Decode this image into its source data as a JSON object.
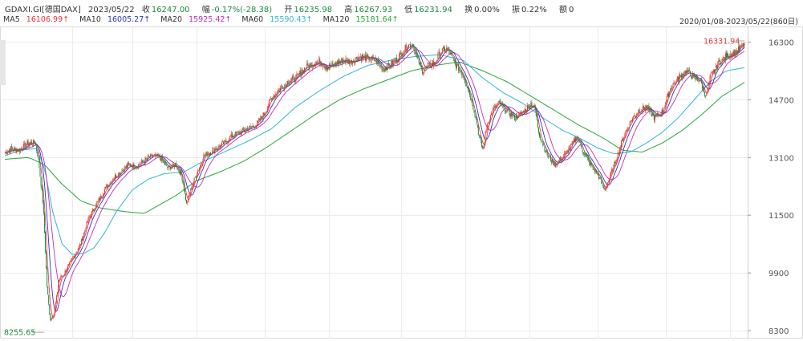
{
  "header": {
    "symbol": "GDAXI.GI[德国DAX]",
    "date": "2023/05/22",
    "close_label": "收",
    "close_value": "16247.00",
    "change_label": "幅",
    "change_value": "-0.17%(-28.38)",
    "open_label": "开",
    "open_value": "16235.98",
    "high_label": "高",
    "high_value": "16267.93",
    "low_label": "低",
    "low_value": "16231.94",
    "turnover_label": "换",
    "turnover_value": "0.00%",
    "amplitude_label": "振",
    "amplitude_value": "0.22%",
    "amount_label": "额",
    "amount_value": "0"
  },
  "ma_legend": [
    {
      "label": "MA5",
      "value": "16106.99↑",
      "color": "#e8373a"
    },
    {
      "label": "MA10",
      "value": "16005.27↑",
      "color": "#2a35c9"
    },
    {
      "label": "MA20",
      "value": "15925.42↑",
      "color": "#c22fb4"
    },
    {
      "label": "MA60",
      "value": "15590.43↑",
      "color": "#2fb7d6"
    },
    {
      "label": "MA120",
      "value": "15181.64↑",
      "color": "#28a83a"
    }
  ],
  "date_range": "2020/01/08-2023/05/22(860日)",
  "chart_data": {
    "type": "line",
    "ylim": [
      8000,
      16700
    ],
    "yticks": [
      16300,
      14700,
      13100,
      11500,
      9900,
      8300
    ],
    "grid": true,
    "colors": {
      "up": "#e8373a",
      "down": "#1b8a3c",
      "ma5": "#e8373a",
      "ma10": "#2a35c9",
      "ma20": "#c22fb4",
      "ma60": "#2fb7d6",
      "ma120": "#28a83a"
    },
    "annotations": {
      "high_label": "16331.94",
      "low_label": "8255.65"
    },
    "close": [
      [
        0,
        13230
      ],
      [
        8,
        13350
      ],
      [
        18,
        13300
      ],
      [
        28,
        13480
      ],
      [
        38,
        13520
      ],
      [
        42,
        13100
      ],
      [
        48,
        11800
      ],
      [
        53,
        9500
      ],
      [
        57,
        8600
      ],
      [
        62,
        8800
      ],
      [
        68,
        9700
      ],
      [
        75,
        9900
      ],
      [
        85,
        10300
      ],
      [
        95,
        10700
      ],
      [
        105,
        11400
      ],
      [
        115,
        11800
      ],
      [
        125,
        12200
      ],
      [
        135,
        12500
      ],
      [
        145,
        12700
      ],
      [
        155,
        12900
      ],
      [
        165,
        12850
      ],
      [
        175,
        13000
      ],
      [
        185,
        13150
      ],
      [
        195,
        13100
      ],
      [
        205,
        12800
      ],
      [
        215,
        12900
      ],
      [
        222,
        12600
      ],
      [
        228,
        11800
      ],
      [
        232,
        12100
      ],
      [
        238,
        12500
      ],
      [
        250,
        13150
      ],
      [
        262,
        13300
      ],
      [
        275,
        13500
      ],
      [
        285,
        13700
      ],
      [
        295,
        13800
      ],
      [
        305,
        13900
      ],
      [
        315,
        14000
      ],
      [
        325,
        14300
      ],
      [
        335,
        14750
      ],
      [
        345,
        15000
      ],
      [
        355,
        15200
      ],
      [
        365,
        15300
      ],
      [
        375,
        15550
      ],
      [
        385,
        15700
      ],
      [
        395,
        15750
      ],
      [
        405,
        15600
      ],
      [
        415,
        15700
      ],
      [
        425,
        15800
      ],
      [
        435,
        15750
      ],
      [
        445,
        15900
      ],
      [
        455,
        15850
      ],
      [
        465,
        15800
      ],
      [
        475,
        15550
      ],
      [
        485,
        15700
      ],
      [
        495,
        15900
      ],
      [
        505,
        16200
      ],
      [
        512,
        16250
      ],
      [
        518,
        15800
      ],
      [
        524,
        15500
      ],
      [
        530,
        15600
      ],
      [
        540,
        15750
      ],
      [
        548,
        16050
      ],
      [
        556,
        16100
      ],
      [
        565,
        15700
      ],
      [
        575,
        15400
      ],
      [
        583,
        14900
      ],
      [
        590,
        14300
      ],
      [
        595,
        13700
      ],
      [
        600,
        13300
      ],
      [
        605,
        14000
      ],
      [
        612,
        14400
      ],
      [
        620,
        14600
      ],
      [
        630,
        14400
      ],
      [
        640,
        14200
      ],
      [
        650,
        14350
      ],
      [
        660,
        14600
      ],
      [
        665,
        14450
      ],
      [
        670,
        13800
      ],
      [
        680,
        13200
      ],
      [
        690,
        12900
      ],
      [
        700,
        13100
      ],
      [
        710,
        13400
      ],
      [
        718,
        13700
      ],
      [
        725,
        13300
      ],
      [
        735,
        12900
      ],
      [
        745,
        12600
      ],
      [
        752,
        12200
      ],
      [
        758,
        12500
      ],
      [
        765,
        12900
      ],
      [
        775,
        13600
      ],
      [
        785,
        14100
      ],
      [
        795,
        14400
      ],
      [
        805,
        14500
      ],
      [
        815,
        14200
      ],
      [
        825,
        14350
      ],
      [
        835,
        15000
      ],
      [
        845,
        15300
      ],
      [
        855,
        15500
      ],
      [
        865,
        15300
      ],
      [
        872,
        15250
      ],
      [
        880,
        14800
      ],
      [
        885,
        15300
      ],
      [
        895,
        15700
      ],
      [
        905,
        15900
      ],
      [
        915,
        16000
      ],
      [
        922,
        16100
      ],
      [
        928,
        16247
      ]
    ],
    "ma60": [
      [
        0,
        13150
      ],
      [
        20,
        13300
      ],
      [
        40,
        13350
      ],
      [
        50,
        12800
      ],
      [
        60,
        11600
      ],
      [
        72,
        10700
      ],
      [
        85,
        10400
      ],
      [
        100,
        10450
      ],
      [
        112,
        10600
      ],
      [
        125,
        11000
      ],
      [
        140,
        11600
      ],
      [
        160,
        12200
      ],
      [
        180,
        12500
      ],
      [
        200,
        12650
      ],
      [
        225,
        12700
      ],
      [
        245,
        12950
      ],
      [
        275,
        13250
      ],
      [
        305,
        13550
      ],
      [
        335,
        13900
      ],
      [
        365,
        14500
      ],
      [
        395,
        14950
      ],
      [
        425,
        15350
      ],
      [
        455,
        15650
      ],
      [
        485,
        15800
      ],
      [
        515,
        15900
      ],
      [
        545,
        15950
      ],
      [
        575,
        15800
      ],
      [
        600,
        15300
      ],
      [
        625,
        14900
      ],
      [
        650,
        14600
      ],
      [
        675,
        14200
      ],
      [
        700,
        13850
      ],
      [
        720,
        13650
      ],
      [
        745,
        13350
      ],
      [
        765,
        13200
      ],
      [
        785,
        13250
      ],
      [
        805,
        13500
      ],
      [
        825,
        13800
      ],
      [
        845,
        14200
      ],
      [
        865,
        14700
      ],
      [
        885,
        15200
      ],
      [
        905,
        15500
      ],
      [
        928,
        15590
      ]
    ],
    "ma120": [
      [
        0,
        13050
      ],
      [
        30,
        13100
      ],
      [
        50,
        12900
      ],
      [
        70,
        12400
      ],
      [
        95,
        11900
      ],
      [
        120,
        11700
      ],
      [
        150,
        11600
      ],
      [
        175,
        11550
      ],
      [
        195,
        11800
      ],
      [
        215,
        12050
      ],
      [
        240,
        12450
      ],
      [
        270,
        12700
      ],
      [
        300,
        13000
      ],
      [
        330,
        13400
      ],
      [
        360,
        13850
      ],
      [
        390,
        14300
      ],
      [
        420,
        14700
      ],
      [
        450,
        15000
      ],
      [
        480,
        15250
      ],
      [
        510,
        15500
      ],
      [
        540,
        15650
      ],
      [
        570,
        15750
      ],
      [
        600,
        15500
      ],
      [
        630,
        15200
      ],
      [
        660,
        14800
      ],
      [
        690,
        14400
      ],
      [
        720,
        14000
      ],
      [
        750,
        13650
      ],
      [
        775,
        13300
      ],
      [
        800,
        13250
      ],
      [
        825,
        13500
      ],
      [
        850,
        13850
      ],
      [
        875,
        14300
      ],
      [
        900,
        14800
      ],
      [
        928,
        15180
      ]
    ]
  }
}
